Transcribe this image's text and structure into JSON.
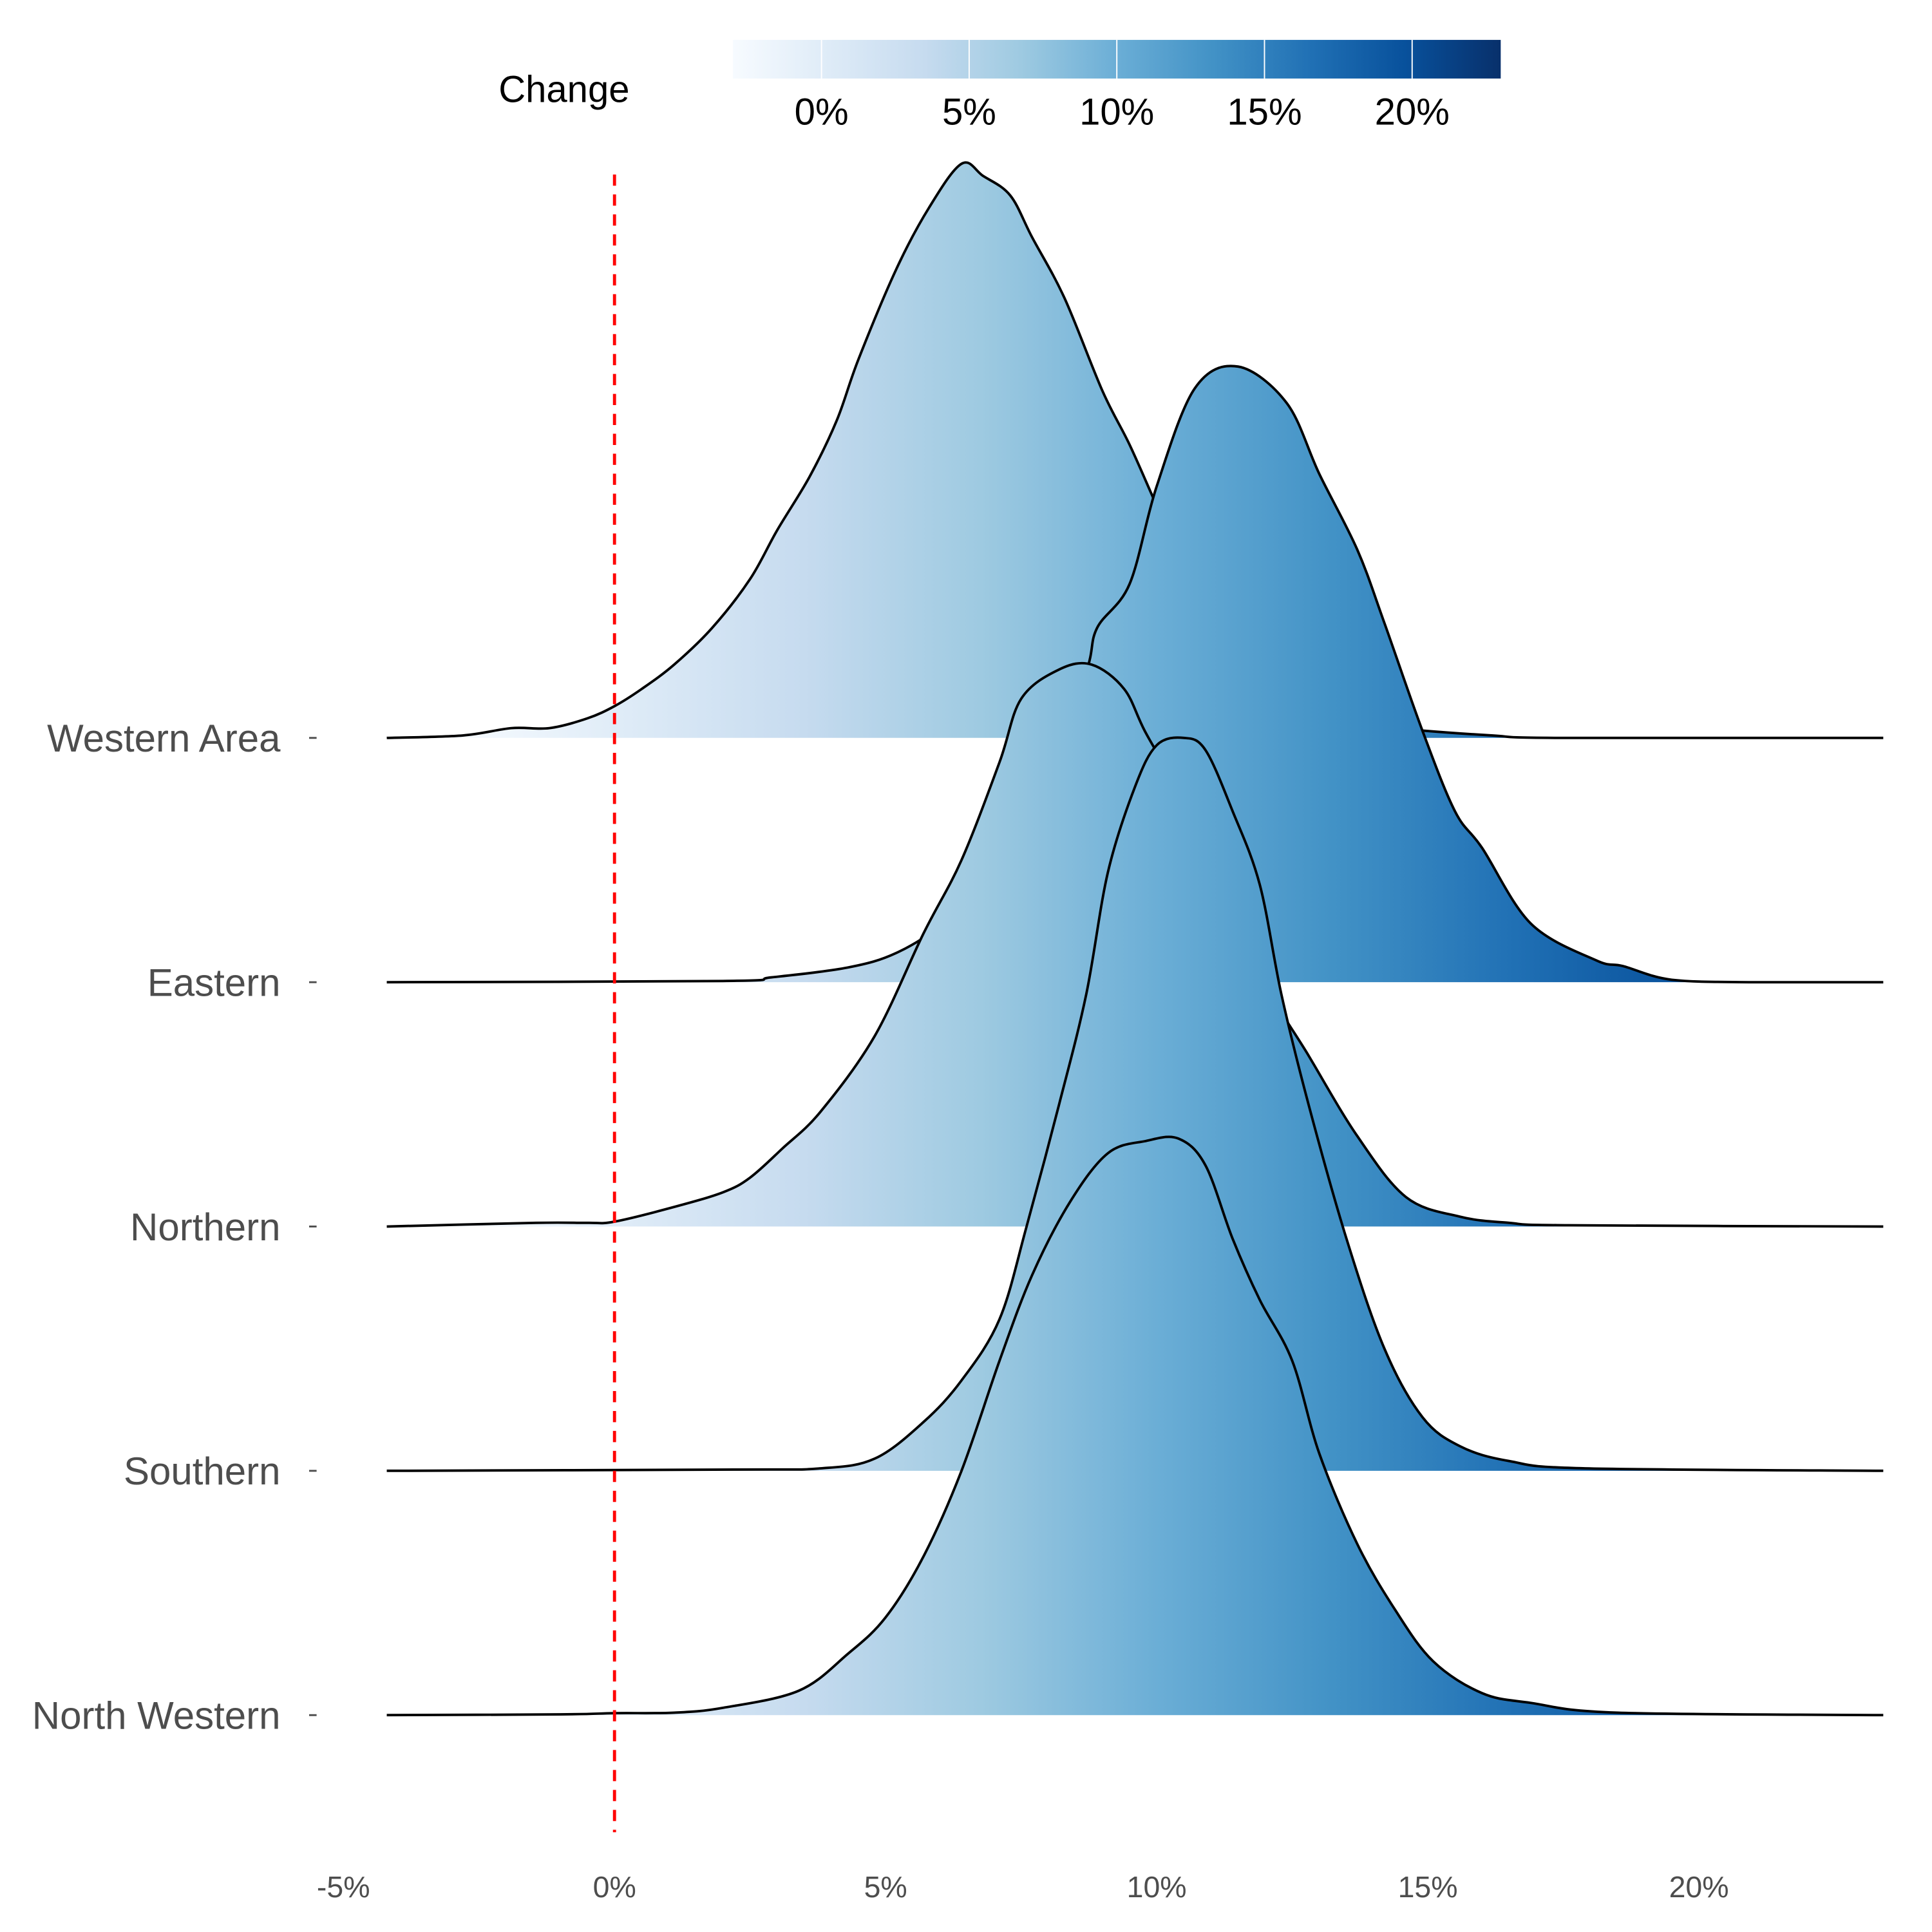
{
  "chart_data": {
    "type": "ridgeline",
    "title": "",
    "xlabel": "",
    "ylabel": "",
    "xlim": [
      -4.2,
      23.4
    ],
    "x_ticks": [
      "-5%",
      "0%",
      "5%",
      "10%",
      "15%",
      "20%"
    ],
    "x_tick_values": [
      -5,
      0,
      5,
      10,
      15,
      20
    ],
    "reference_line": {
      "x": 0,
      "color": "#FF0000",
      "style": "dashed"
    },
    "legend": {
      "title": "Change",
      "placement": "top",
      "range": [
        -3,
        23
      ],
      "ticks": [
        "0%",
        "5%",
        "10%",
        "15%",
        "20%"
      ],
      "tick_values": [
        0,
        5,
        10,
        15,
        20
      ],
      "palette": [
        "#F7FBFF",
        "#DEEBF7",
        "#C6DBEF",
        "#9ECAE1",
        "#6BAED6",
        "#4292C6",
        "#2171B5",
        "#08519C",
        "#08306B"
      ]
    },
    "series": [
      {
        "name": "Western Area",
        "points": [
          [
            -4.2,
            0
          ],
          [
            -2.8,
            0.01
          ],
          [
            -1.9,
            0.04
          ],
          [
            -1.2,
            0.04
          ],
          [
            -0.5,
            0.08
          ],
          [
            0,
            0.13
          ],
          [
            0.5,
            0.2
          ],
          [
            1.1,
            0.3
          ],
          [
            1.8,
            0.45
          ],
          [
            2.5,
            0.65
          ],
          [
            3.0,
            0.85
          ],
          [
            3.6,
            1.07
          ],
          [
            4.1,
            1.3
          ],
          [
            4.5,
            1.55
          ],
          [
            5.2,
            1.92
          ],
          [
            5.8,
            2.17
          ],
          [
            6.4,
            2.35
          ],
          [
            6.8,
            2.3
          ],
          [
            7.3,
            2.22
          ],
          [
            7.7,
            2.05
          ],
          [
            8.3,
            1.8
          ],
          [
            9.0,
            1.42
          ],
          [
            9.5,
            1.2
          ],
          [
            10.0,
            0.95
          ],
          [
            10.7,
            0.6
          ],
          [
            11.7,
            0.3
          ],
          [
            12.8,
            0.12
          ],
          [
            14.0,
            0.05
          ],
          [
            14.9,
            0.03
          ],
          [
            16.2,
            0.01
          ],
          [
            17.4,
            0
          ],
          [
            23.4,
            0
          ]
        ]
      },
      {
        "name": "Eastern",
        "points": [
          [
            -4.2,
            0
          ],
          [
            2.0,
            0.005
          ],
          [
            2.9,
            0.02
          ],
          [
            4.3,
            0.06
          ],
          [
            5.2,
            0.12
          ],
          [
            6.1,
            0.245
          ],
          [
            7.1,
            0.45
          ],
          [
            8.0,
            0.86
          ],
          [
            8.7,
            1.27
          ],
          [
            8.9,
            1.45
          ],
          [
            9.5,
            1.63
          ],
          [
            10.0,
            2.03
          ],
          [
            10.7,
            2.43
          ],
          [
            11.5,
            2.52
          ],
          [
            12.4,
            2.37
          ],
          [
            13.0,
            2.08
          ],
          [
            13.7,
            1.77
          ],
          [
            14.2,
            1.47
          ],
          [
            14.9,
            1.03
          ],
          [
            15.5,
            0.7
          ],
          [
            16.0,
            0.55
          ],
          [
            16.9,
            0.24
          ],
          [
            18.1,
            0.09
          ],
          [
            18.6,
            0.066
          ],
          [
            19.5,
            0.01
          ],
          [
            21,
            0
          ],
          [
            23.4,
            0
          ]
        ]
      },
      {
        "name": "Northern",
        "points": [
          [
            -4.2,
            0
          ],
          [
            -1.45,
            0.015
          ],
          [
            -0.5,
            0.015
          ],
          [
            0,
            0.02
          ],
          [
            1.1,
            0.08
          ],
          [
            2.0,
            0.14
          ],
          [
            2.5,
            0.2
          ],
          [
            3.1,
            0.32
          ],
          [
            3.8,
            0.47
          ],
          [
            4.8,
            0.78
          ],
          [
            5.7,
            1.2
          ],
          [
            6.4,
            1.5
          ],
          [
            7.1,
            1.9
          ],
          [
            7.5,
            2.16
          ],
          [
            8.2,
            2.28
          ],
          [
            8.8,
            2.3
          ],
          [
            9.4,
            2.2
          ],
          [
            9.8,
            2.02
          ],
          [
            10.5,
            1.75
          ],
          [
            11.2,
            1.45
          ],
          [
            12.0,
            1.0
          ],
          [
            12.8,
            0.7
          ],
          [
            13.7,
            0.37
          ],
          [
            14.6,
            0.12
          ],
          [
            15.6,
            0.04
          ],
          [
            16.5,
            0.015
          ],
          [
            17.6,
            0.005
          ],
          [
            23.4,
            0
          ]
        ]
      },
      {
        "name": "Southern",
        "points": [
          [
            -4.2,
            0
          ],
          [
            2.2,
            0.005
          ],
          [
            3.8,
            0.01
          ],
          [
            4.8,
            0.05
          ],
          [
            5.7,
            0.2
          ],
          [
            6.4,
            0.37
          ],
          [
            7.1,
            0.62
          ],
          [
            7.6,
            1.0
          ],
          [
            8.2,
            1.5
          ],
          [
            8.7,
            1.95
          ],
          [
            9.1,
            2.45
          ],
          [
            9.6,
            2.8
          ],
          [
            10.0,
            2.97
          ],
          [
            10.5,
            3.0
          ],
          [
            10.9,
            2.95
          ],
          [
            11.4,
            2.7
          ],
          [
            11.9,
            2.4
          ],
          [
            12.3,
            1.95
          ],
          [
            12.8,
            1.5
          ],
          [
            13.5,
            0.95
          ],
          [
            14.2,
            0.5
          ],
          [
            14.9,
            0.22
          ],
          [
            15.6,
            0.1
          ],
          [
            16.5,
            0.04
          ],
          [
            17.9,
            0.01
          ],
          [
            23.4,
            0
          ]
        ]
      },
      {
        "name": "North Western",
        "points": [
          [
            -4.2,
            0
          ],
          [
            -1.0,
            0.003
          ],
          [
            0,
            0.008
          ],
          [
            1.1,
            0.01
          ],
          [
            2.0,
            0.03
          ],
          [
            3.4,
            0.1
          ],
          [
            4.3,
            0.25
          ],
          [
            5.0,
            0.4
          ],
          [
            5.7,
            0.65
          ],
          [
            6.4,
            1.0
          ],
          [
            7.1,
            1.45
          ],
          [
            7.7,
            1.8
          ],
          [
            8.4,
            2.1
          ],
          [
            9.1,
            2.3
          ],
          [
            9.8,
            2.35
          ],
          [
            10.4,
            2.36
          ],
          [
            10.9,
            2.25
          ],
          [
            11.4,
            1.95
          ],
          [
            11.9,
            1.7
          ],
          [
            12.5,
            1.45
          ],
          [
            13.0,
            1.07
          ],
          [
            13.7,
            0.7
          ],
          [
            14.4,
            0.43
          ],
          [
            15.1,
            0.22
          ],
          [
            16.0,
            0.09
          ],
          [
            16.9,
            0.05
          ],
          [
            18.5,
            0.01
          ],
          [
            23.4,
            0
          ]
        ]
      }
    ]
  }
}
